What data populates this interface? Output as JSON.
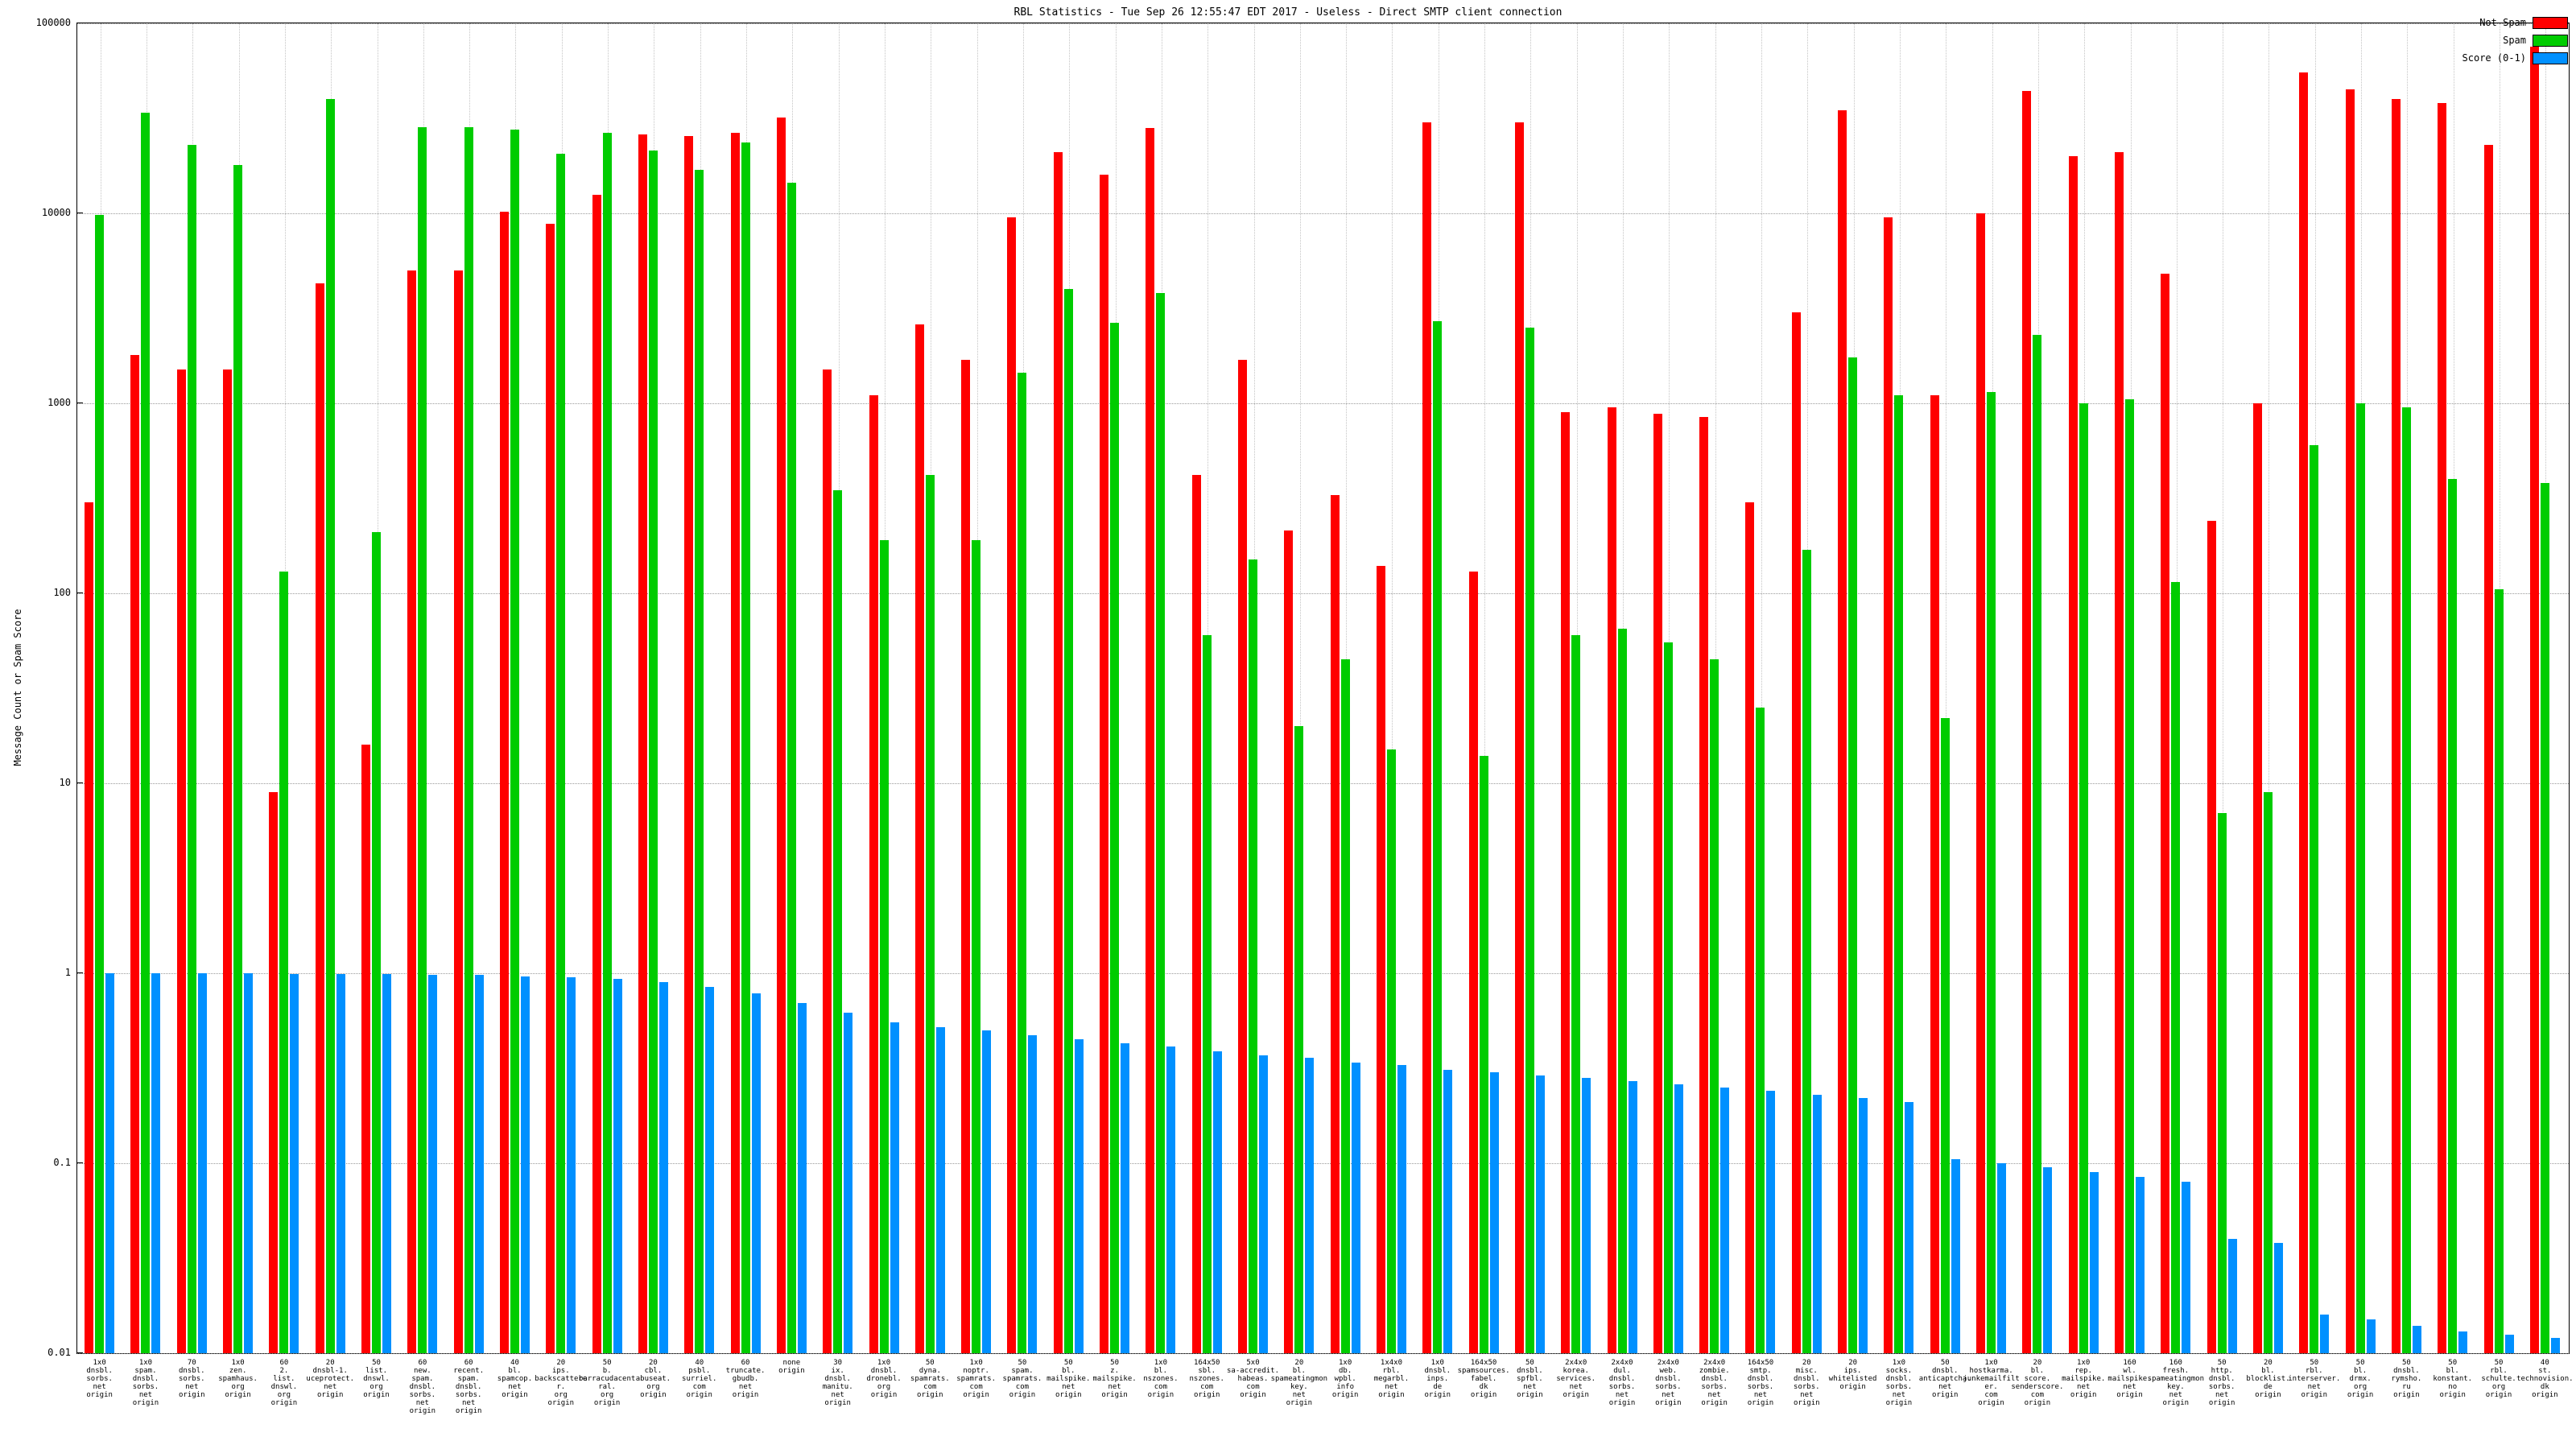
{
  "title": "RBL Statistics - Tue Sep 26 12:55:47 EDT 2017 - Useless - Direct SMTP client connection",
  "ylabel": "Message Count or Spam Score",
  "legend": [
    {
      "id": "not-spam",
      "label": "Not Spam",
      "color": "#ff0000"
    },
    {
      "id": "spam",
      "label": "Spam",
      "color": "#00cc00"
    },
    {
      "id": "score",
      "label": "Score (0-1)",
      "color": "#0090ff"
    }
  ],
  "axis": {
    "y_ticks": [
      "100000",
      "10000",
      "1000",
      "100",
      "10",
      "1",
      "0.1",
      "0.01"
    ],
    "y_scale": "log",
    "y_min": 0.01,
    "y_max": 100000
  },
  "chart_data": {
    "type": "bar",
    "scale": "log-y",
    "title": "RBL Statistics - Tue Sep 26 12:55:47 EDT 2017 - Useless - Direct SMTP client connection",
    "xlabel": "",
    "ylabel": "Message Count or Spam Score",
    "ylim": [
      0.01,
      100000
    ],
    "grid": true,
    "legend_position": "top-right",
    "categories": [
      "1x0\ndnsbl.\nsorbs.\nnet\norigin",
      "1x0\nspam.\ndnsbl.\nsorbs.\nnet\norigin",
      "70\ndnsbl.\nsorbs.\nnet\norigin",
      "1x0\nzen.\nspamhaus.\norg\norigin",
      "60\n2.\nlist.\ndnswl.\norg\norigin",
      "20\ndnsbl-1.\nuceprotect.\nnet\norigin",
      "50\nlist.\ndnswl.\norg\norigin",
      "60\nnew.\nspam.\ndnsbl.\nsorbs.\nnet\norigin",
      "60\nrecent.\nspam.\ndnsbl.\nsorbs.\nnet\norigin",
      "40\nbl.\nspamcop.\nnet\norigin",
      "20\nips.\nbackscatterer.\norg\norigin",
      "50\nb.\nbarracudacentral.\norg\norigin",
      "20\ncbl.\nabuseat.\norg\norigin",
      "40\npsbl.\nsurriel.\ncom\norigin",
      "60\ntruncate.\ngbudb.\nnet\norigin",
      "none\norigin",
      "30\nix.\ndnsbl.\nmanitu.\nnet\norigin",
      "1x0\ndnsbl.\ndronebl.\norg\norigin",
      "50\ndyna.\nspamrats.\ncom\norigin",
      "1x0\nnoptr.\nspamrats.\ncom\norigin",
      "50\nspam.\nspamrats.\ncom\norigin",
      "50\nbl.\nmailspike.\nnet\norigin",
      "50\nz.\nmailspike.\nnet\norigin",
      "1x0\nbl.\nnszones.\ncom\norigin",
      "164x50\nsbl.\nnszones.\ncom\norigin",
      "5x0\nsa-accredit.\nhabeas.\ncom\norigin",
      "20\nbl.\nspameatingmonkey.\nnet\norigin",
      "1x0\ndb.\nwpbl.\ninfo\norigin",
      "1x4x0\nrbl.\nmegarbl.\nnet\norigin",
      "1x0\ndnsbl.\ninps.\nde\norigin",
      "164x50\nspamsources.\nfabel.\ndk\norigin",
      "50\ndnsbl.\nspfbl.\nnet\norigin",
      "2x4x0\nkorea.\nservices.\nnet\norigin",
      "2x4x0\ndul.\ndnsbl.\nsorbs.\nnet\norigin",
      "2x4x0\nweb.\ndnsbl.\nsorbs.\nnet\norigin",
      "2x4x0\nzombie.\ndnsbl.\nsorbs.\nnet\norigin",
      "164x50\nsmtp.\ndnsbl.\nsorbs.\nnet\norigin",
      "20\nmisc.\ndnsbl.\nsorbs.\nnet\norigin",
      "20\nips.\nwhitelisted\norigin",
      "1x0\nsocks.\ndnsbl.\nsorbs.\nnet\norigin",
      "50\ndnsbl.\nanticaptcha.\nnet\norigin",
      "1x0\nhostkarma.\njunkemailfilter.\ncom\norigin",
      "20\nbl.\nscore.\nsenderscore.\ncom\norigin",
      "1x0\nrep.\nmailspike.\nnet\norigin",
      "160\nwl.\nmailspike.\nnet\norigin",
      "160\nfresh.\nspameatingmonkey.\nnet\norigin",
      "50\nhttp.\ndnsbl.\nsorbs.\nnet\norigin",
      "20\nbl.\nblocklist.\nde\norigin",
      "50\nrbl.\ninterserver.\nnet\norigin",
      "50\nbl.\ndrmx.\norg\norigin",
      "50\ndnsbl.\nrymsho.\nru\norigin",
      "50\nbl.\nkonstant.\nno\norigin",
      "50\nrbl.\nschulte.\norg\norigin",
      "40\nst.\ntechnovision.\ndk\norigin"
    ],
    "series": [
      {
        "name": "Not Spam",
        "color": "#ff0000",
        "values": [
          300,
          1800,
          1500,
          1500,
          9,
          4300,
          16,
          5000,
          5000,
          10200,
          8800,
          12500,
          26000,
          25500,
          26500,
          32000,
          1500,
          1100,
          2600,
          1700,
          9500,
          21000,
          16000,
          28000,
          420,
          1700,
          215,
          330,
          140,
          30000,
          130,
          30000,
          900,
          950,
          880,
          850,
          300,
          3000,
          35000,
          9500,
          1100,
          10000,
          44000,
          20000,
          21000,
          4800,
          240,
          1000,
          55000,
          45000,
          40000,
          38000,
          23000,
          75000
        ]
      },
      {
        "name": "Spam",
        "color": "#00cc00",
        "values": [
          9800,
          34000,
          23000,
          18000,
          130,
          40000,
          210,
          28500,
          28500,
          27500,
          20500,
          26500,
          21500,
          17000,
          23500,
          14500,
          350,
          190,
          420,
          190,
          1450,
          4000,
          2650,
          3800,
          60,
          150,
          20,
          45,
          15,
          2700,
          14,
          2500,
          60,
          65,
          55,
          45,
          25,
          170,
          1750,
          1100,
          22,
          1150,
          2300,
          1000,
          1050,
          115,
          7,
          9,
          600,
          1000,
          950,
          400,
          105,
          380
        ]
      },
      {
        "name": "Score (0-1)",
        "color": "#0090ff",
        "values": [
          1.0,
          1.0,
          1.0,
          1.0,
          0.99,
          0.99,
          0.99,
          0.98,
          0.98,
          0.96,
          0.95,
          0.93,
          0.9,
          0.85,
          0.78,
          0.7,
          0.62,
          0.55,
          0.52,
          0.5,
          0.47,
          0.45,
          0.43,
          0.41,
          0.39,
          0.37,
          0.36,
          0.34,
          0.33,
          0.31,
          0.3,
          0.29,
          0.28,
          0.27,
          0.26,
          0.25,
          0.24,
          0.23,
          0.22,
          0.21,
          0.105,
          0.1,
          0.095,
          0.09,
          0.085,
          0.08,
          0.04,
          0.038,
          0.016,
          0.015,
          0.014,
          0.013,
          0.0125,
          0.012
        ]
      }
    ]
  }
}
